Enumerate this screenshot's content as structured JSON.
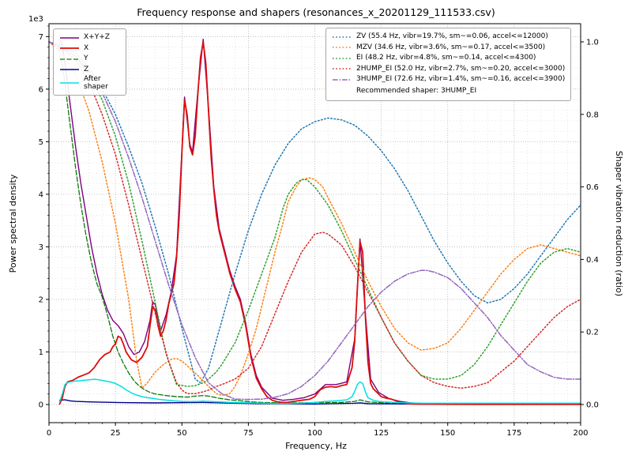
{
  "chart_data": {
    "type": "line",
    "title": "Frequency response and shapers (resonances_x_20201129_111533.csv)",
    "xlabel": "Frequency, Hz",
    "ylabel_left": "Power spectral density",
    "ylabel_right": "Shaper vibration reduction (ratio)",
    "recommended_label": "Recommended shaper: 3HUMP_EI",
    "recommended_shaper": "3HUMP_EI",
    "x_axis": {
      "lim": [
        0,
        200
      ],
      "ticks": [
        0,
        25,
        50,
        75,
        100,
        125,
        150,
        175,
        200
      ],
      "minor_step": 5
    },
    "left_axis": {
      "offset_label": "1e3",
      "lim": [
        -345,
        7245
      ],
      "ticks": [
        0,
        1000,
        2000,
        3000,
        4000,
        5000,
        6000,
        7000
      ],
      "tick_labels": [
        "0",
        "1",
        "2",
        "3",
        "4",
        "5",
        "6",
        "7"
      ],
      "minor_step": 200
    },
    "right_axis": {
      "lim": [
        -0.05,
        1.05
      ],
      "ticks": [
        0.0,
        0.2,
        0.4,
        0.6,
        0.8,
        1.0
      ]
    },
    "grid": true,
    "psd_series": [
      {
        "name": "xyz",
        "label": "X+Y+Z",
        "color": "#7f007f",
        "style": "solid",
        "width": 1.4,
        "x": [
          4,
          5,
          6,
          8,
          10,
          12,
          14,
          16,
          18,
          20,
          22,
          24,
          26,
          28,
          30,
          32,
          34,
          36,
          38,
          39,
          40,
          42,
          44,
          46,
          48,
          50,
          51,
          53,
          54,
          56,
          58,
          60,
          62,
          64,
          66,
          68,
          70,
          72,
          74,
          76,
          78,
          80,
          84,
          88,
          92,
          96,
          100,
          104,
          108,
          112,
          115,
          117,
          119,
          121,
          124,
          128,
          132,
          136,
          140,
          150,
          160,
          180,
          200
        ],
        "y": [
          6950,
          6850,
          6500,
          5700,
          4900,
          4200,
          3600,
          3000,
          2500,
          2100,
          1800,
          1600,
          1500,
          1350,
          1100,
          950,
          1000,
          1200,
          1600,
          1950,
          1900,
          1400,
          1700,
          2150,
          2850,
          4850,
          5850,
          4950,
          4800,
          5950,
          6950,
          5650,
          4150,
          3350,
          2950,
          2550,
          2250,
          2000,
          1550,
          950,
          550,
          330,
          120,
          80,
          100,
          130,
          200,
          380,
          380,
          430,
          1250,
          3150,
          1750,
          480,
          230,
          110,
          60,
          30,
          20,
          12,
          10,
          8,
          8
        ]
      },
      {
        "name": "y",
        "label": "Y",
        "color": "#0a7a0a",
        "style": "dashed",
        "width": 1.3,
        "x": [
          4,
          5,
          6,
          8,
          10,
          12,
          14,
          16,
          18,
          20,
          22,
          24,
          26,
          28,
          30,
          32,
          34,
          36,
          38,
          40,
          44,
          48,
          52,
          55,
          58,
          60,
          64,
          68,
          72,
          76,
          80,
          90,
          100,
          110,
          115,
          117,
          120,
          130,
          140,
          160,
          180,
          200
        ],
        "y": [
          6600,
          6500,
          6100,
          5300,
          4500,
          3800,
          3200,
          2700,
          2300,
          2050,
          1700,
          1300,
          1000,
          780,
          600,
          450,
          350,
          280,
          230,
          200,
          170,
          150,
          140,
          160,
          170,
          160,
          120,
          90,
          70,
          50,
          40,
          30,
          35,
          40,
          60,
          90,
          50,
          20,
          10,
          8,
          8,
          8
        ]
      },
      {
        "name": "z",
        "label": "Z",
        "color": "#00008b",
        "style": "solid",
        "width": 1.4,
        "x": [
          4,
          6,
          8,
          10,
          15,
          20,
          25,
          30,
          40,
          50,
          58,
          70,
          80,
          100,
          115,
          117,
          120,
          140,
          170,
          200
        ],
        "y": [
          80,
          90,
          70,
          60,
          50,
          45,
          40,
          35,
          30,
          35,
          40,
          25,
          15,
          10,
          25,
          30,
          15,
          8,
          6,
          6
        ]
      },
      {
        "name": "x",
        "label": "X",
        "color": "#dc0d0d",
        "style": "solid",
        "width": 1.8,
        "x": [
          4,
          5,
          6,
          7,
          9,
          11,
          13,
          15,
          17,
          19,
          21,
          23,
          24,
          25,
          26,
          27,
          28,
          29,
          31,
          33,
          35,
          37,
          38,
          39,
          40,
          41,
          42,
          43,
          44,
          45,
          46,
          47,
          48,
          49,
          50,
          51,
          52,
          53,
          54,
          55,
          56,
          57,
          58,
          59,
          60,
          61,
          62,
          63,
          64,
          65,
          66,
          67,
          68,
          70,
          72,
          74,
          76,
          78,
          80,
          82,
          84,
          86,
          88,
          90,
          92,
          95,
          98,
          100,
          102,
          104,
          106,
          108,
          110,
          112,
          114,
          115,
          116,
          117,
          118,
          119,
          120,
          121,
          122,
          123,
          124,
          125,
          127,
          129,
          131,
          133,
          135,
          140,
          150,
          160,
          170,
          180,
          190,
          200
        ],
        "y": [
          10,
          120,
          350,
          430,
          460,
          520,
          560,
          600,
          700,
          850,
          950,
          1000,
          1100,
          1150,
          1300,
          1270,
          1150,
          1000,
          850,
          800,
          900,
          1100,
          1500,
          1850,
          1800,
          1500,
          1300,
          1400,
          1600,
          1900,
          2100,
          2300,
          2800,
          3600,
          4800,
          5800,
          5500,
          4900,
          4750,
          5100,
          5900,
          6600,
          6900,
          6500,
          5600,
          4700,
          4100,
          3600,
          3300,
          3100,
          2900,
          2700,
          2500,
          2200,
          1950,
          1500,
          900,
          500,
          300,
          150,
          80,
          50,
          40,
          45,
          60,
          80,
          100,
          150,
          280,
          330,
          340,
          330,
          360,
          380,
          700,
          1200,
          2200,
          3100,
          2900,
          1700,
          800,
          400,
          300,
          250,
          200,
          150,
          120,
          100,
          60,
          30,
          15,
          8,
          5,
          4,
          4,
          4,
          4,
          4
        ]
      },
      {
        "name": "after_shaper",
        "label": "After shaper",
        "color": "#00e0e0",
        "style": "solid",
        "width": 1.5,
        "x": [
          4,
          5,
          6,
          7,
          9,
          11,
          13,
          15,
          17,
          19,
          21,
          23,
          25,
          27,
          29,
          31,
          33,
          35,
          37,
          39,
          41,
          43,
          45,
          47,
          50,
          53,
          56,
          58,
          60,
          64,
          68,
          72,
          76,
          80,
          85,
          90,
          95,
          100,
          104,
          108,
          110,
          112,
          114,
          115,
          116,
          117,
          118,
          119,
          120,
          122,
          124,
          126,
          130,
          135,
          140,
          150,
          160,
          180,
          200
        ],
        "y": [
          50,
          200,
          380,
          420,
          440,
          450,
          460,
          470,
          480,
          470,
          450,
          430,
          400,
          350,
          280,
          220,
          180,
          150,
          130,
          120,
          100,
          90,
          80,
          70,
          60,
          55,
          60,
          65,
          60,
          50,
          40,
          35,
          30,
          25,
          20,
          20,
          25,
          40,
          60,
          70,
          80,
          90,
          150,
          250,
          380,
          430,
          400,
          250,
          130,
          80,
          60,
          50,
          40,
          30,
          25,
          25,
          25,
          25,
          25
        ]
      }
    ],
    "shaper_series": [
      {
        "name": "zv",
        "label": "ZV (55.4 Hz, vibr=19.7%, sm~=0.06, accel<=12000)",
        "color": "#1f77b4",
        "style": "dotted",
        "width": 1.5,
        "x": [
          0,
          5,
          10,
          15,
          20,
          25,
          30,
          35,
          40,
          45,
          50,
          55,
          57,
          60,
          65,
          70,
          75,
          80,
          85,
          90,
          95,
          100,
          105,
          110,
          115,
          120,
          125,
          130,
          135,
          140,
          145,
          150,
          155,
          160,
          165,
          170,
          175,
          180,
          185,
          190,
          195,
          200
        ],
        "y": [
          1.0,
          0.99,
          0.97,
          0.93,
          0.87,
          0.8,
          0.71,
          0.61,
          0.49,
          0.36,
          0.21,
          0.07,
          0.06,
          0.1,
          0.23,
          0.36,
          0.48,
          0.58,
          0.66,
          0.72,
          0.76,
          0.78,
          0.79,
          0.785,
          0.77,
          0.74,
          0.7,
          0.65,
          0.59,
          0.52,
          0.45,
          0.39,
          0.34,
          0.3,
          0.28,
          0.29,
          0.32,
          0.36,
          0.41,
          0.46,
          0.51,
          0.55
        ]
      },
      {
        "name": "mzv",
        "label": "MZV (34.6 Hz, vibr=3.6%, sm~=0.17, accel<=3500)",
        "color": "#ff7f0e",
        "style": "dotted",
        "width": 1.5,
        "x": [
          0,
          5,
          10,
          15,
          20,
          25,
          30,
          33,
          35,
          37,
          40,
          43,
          46,
          48,
          50,
          53,
          56,
          60,
          63,
          65,
          68,
          70,
          72,
          75,
          78,
          80,
          83,
          85,
          88,
          90,
          93,
          95,
          98,
          100,
          103,
          105,
          110,
          115,
          120,
          125,
          130,
          135,
          140,
          145,
          150,
          155,
          160,
          165,
          170,
          175,
          180,
          185,
          190,
          195,
          200
        ],
        "y": [
          1.0,
          0.97,
          0.91,
          0.81,
          0.67,
          0.5,
          0.29,
          0.12,
          0.045,
          0.06,
          0.09,
          0.11,
          0.125,
          0.127,
          0.12,
          0.1,
          0.08,
          0.05,
          0.03,
          0.025,
          0.03,
          0.05,
          0.08,
          0.14,
          0.21,
          0.27,
          0.36,
          0.42,
          0.5,
          0.56,
          0.6,
          0.62,
          0.625,
          0.62,
          0.6,
          0.57,
          0.5,
          0.42,
          0.34,
          0.27,
          0.21,
          0.17,
          0.15,
          0.155,
          0.17,
          0.21,
          0.26,
          0.31,
          0.36,
          0.4,
          0.43,
          0.44,
          0.43,
          0.42,
          0.41
        ]
      },
      {
        "name": "ei",
        "label": "EI (48.2 Hz, vibr=4.8%, sm~=0.14, accel<=4300)",
        "color": "#2ca02c",
        "style": "dotted",
        "width": 1.5,
        "x": [
          0,
          5,
          10,
          15,
          20,
          25,
          30,
          35,
          40,
          44,
          48,
          52,
          55,
          58,
          60,
          63,
          65,
          70,
          75,
          80,
          85,
          88,
          90,
          93,
          95,
          97,
          100,
          105,
          110,
          115,
          120,
          125,
          130,
          135,
          140,
          145,
          150,
          155,
          160,
          165,
          170,
          175,
          180,
          185,
          190,
          195,
          200
        ],
        "y": [
          1.0,
          0.985,
          0.96,
          0.91,
          0.84,
          0.74,
          0.61,
          0.45,
          0.28,
          0.14,
          0.055,
          0.05,
          0.052,
          0.06,
          0.07,
          0.09,
          0.11,
          0.17,
          0.26,
          0.36,
          0.46,
          0.54,
          0.58,
          0.61,
          0.62,
          0.62,
          0.6,
          0.55,
          0.48,
          0.4,
          0.32,
          0.24,
          0.17,
          0.12,
          0.08,
          0.07,
          0.07,
          0.08,
          0.11,
          0.16,
          0.22,
          0.28,
          0.34,
          0.39,
          0.42,
          0.43,
          0.42
        ]
      },
      {
        "name": "2hump_ei",
        "label": "2HUMP_EI (52.0 Hz, vibr=2.7%, sm~=0.20, accel<=3000)",
        "color": "#d62728",
        "style": "dotted",
        "width": 1.5,
        "x": [
          0,
          5,
          10,
          15,
          20,
          25,
          30,
          35,
          40,
          45,
          48,
          50,
          52,
          55,
          58,
          60,
          63,
          65,
          70,
          75,
          80,
          85,
          90,
          95,
          100,
          103,
          105,
          110,
          115,
          120,
          125,
          130,
          135,
          140,
          145,
          150,
          155,
          160,
          165,
          170,
          175,
          180,
          185,
          190,
          195,
          200
        ],
        "y": [
          1.0,
          0.98,
          0.95,
          0.89,
          0.8,
          0.69,
          0.55,
          0.4,
          0.25,
          0.12,
          0.06,
          0.04,
          0.03,
          0.03,
          0.035,
          0.04,
          0.05,
          0.055,
          0.07,
          0.1,
          0.16,
          0.25,
          0.34,
          0.42,
          0.47,
          0.475,
          0.47,
          0.44,
          0.38,
          0.31,
          0.24,
          0.17,
          0.12,
          0.08,
          0.06,
          0.05,
          0.045,
          0.05,
          0.06,
          0.09,
          0.12,
          0.16,
          0.2,
          0.24,
          0.27,
          0.29
        ]
      },
      {
        "name": "3hump_ei",
        "label": "3HUMP_EI (72.6 Hz, vibr=1.4%, sm~=0.16, accel<=3900)",
        "color": "#9467bd",
        "style": "dashdot",
        "width": 1.5,
        "x": [
          0,
          5,
          10,
          15,
          20,
          25,
          30,
          35,
          40,
          45,
          50,
          55,
          60,
          65,
          70,
          75,
          80,
          85,
          90,
          95,
          100,
          105,
          110,
          115,
          120,
          125,
          130,
          135,
          140,
          142,
          145,
          150,
          155,
          160,
          165,
          170,
          175,
          180,
          185,
          190,
          195,
          200
        ],
        "y": [
          1.0,
          0.985,
          0.96,
          0.92,
          0.86,
          0.78,
          0.68,
          0.57,
          0.45,
          0.33,
          0.22,
          0.13,
          0.06,
          0.03,
          0.015,
          0.014,
          0.015,
          0.02,
          0.03,
          0.05,
          0.08,
          0.12,
          0.17,
          0.22,
          0.27,
          0.31,
          0.34,
          0.36,
          0.37,
          0.37,
          0.365,
          0.35,
          0.32,
          0.28,
          0.24,
          0.19,
          0.15,
          0.11,
          0.09,
          0.075,
          0.07,
          0.07
        ]
      }
    ]
  }
}
